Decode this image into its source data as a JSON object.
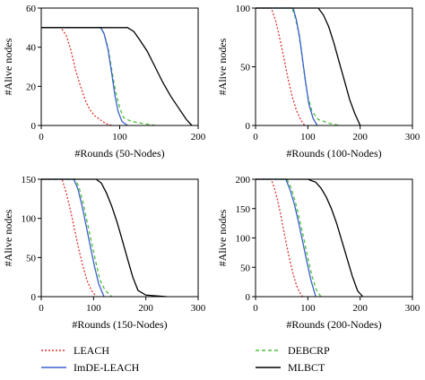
{
  "colors": {
    "LEACH": "#e0302a",
    "ImDE-LEACH": "#3a5fcd",
    "DEBCRP": "#4cbf3a",
    "MLBCT": "#000000"
  },
  "legend": [
    {
      "name": "LEACH",
      "dash": "dotted"
    },
    {
      "name": "DEBCRP",
      "dash": "dashed"
    },
    {
      "name": "ImDE-LEACH",
      "dash": "solid"
    },
    {
      "name": "MLBCT",
      "dash": "solid"
    }
  ],
  "chart_data": [
    {
      "type": "line",
      "xlabel": "#Rounds (50-Nodes)",
      "ylabel": "#Alive nodes",
      "xlim": [
        0,
        200
      ],
      "ylim": [
        0,
        60
      ],
      "xticks": [
        "0",
        "100",
        "200"
      ],
      "yticks": [
        "0",
        "20",
        "40",
        "60"
      ],
      "series": [
        {
          "name": "LEACH",
          "x": [
            0,
            25,
            32,
            38,
            44,
            50,
            56,
            62,
            68,
            75,
            82,
            90
          ],
          "y": [
            50,
            50,
            46,
            38,
            28,
            20,
            13,
            8,
            5,
            3,
            1,
            0
          ]
        },
        {
          "name": "DEBCRP",
          "x": [
            0,
            75,
            80,
            85,
            90,
            95,
            100,
            105,
            115,
            130,
            145
          ],
          "y": [
            50,
            50,
            47,
            40,
            28,
            17,
            9,
            4,
            2,
            1,
            0
          ]
        },
        {
          "name": "ImDE-LEACH",
          "x": [
            0,
            76,
            80,
            85,
            90,
            94,
            98,
            103,
            110
          ],
          "y": [
            50,
            50,
            47,
            39,
            26,
            15,
            7,
            2,
            0
          ]
        },
        {
          "name": "MLBCT",
          "x": [
            0,
            110,
            118,
            125,
            135,
            145,
            155,
            165,
            175,
            185,
            192
          ],
          "y": [
            50,
            50,
            48,
            44,
            38,
            30,
            22,
            15,
            9,
            3,
            0
          ]
        }
      ]
    },
    {
      "type": "line",
      "xlabel": "#Rounds (100-Nodes)",
      "ylabel": "#Alive nodes",
      "xlim": [
        0,
        300
      ],
      "ylim": [
        0,
        100
      ],
      "xticks": [
        "0",
        "100",
        "200",
        "300"
      ],
      "yticks": [
        "0",
        "50",
        "100"
      ],
      "series": [
        {
          "name": "LEACH",
          "x": [
            0,
            30,
            38,
            46,
            54,
            62,
            70,
            78,
            86,
            94
          ],
          "y": [
            100,
            100,
            90,
            75,
            58,
            40,
            25,
            13,
            5,
            0
          ]
        },
        {
          "name": "DEBCRP",
          "x": [
            0,
            70,
            76,
            82,
            88,
            94,
            100,
            108,
            120,
            140,
            160
          ],
          "y": [
            100,
            100,
            92,
            80,
            62,
            42,
            25,
            12,
            5,
            2,
            0
          ]
        },
        {
          "name": "ImDE-LEACH",
          "x": [
            0,
            72,
            78,
            84,
            90,
            96,
            102,
            110,
            118
          ],
          "y": [
            100,
            100,
            90,
            76,
            56,
            36,
            18,
            6,
            0
          ]
        },
        {
          "name": "MLBCT",
          "x": [
            0,
            120,
            130,
            140,
            150,
            160,
            170,
            180,
            190,
            200
          ],
          "y": [
            100,
            100,
            94,
            84,
            70,
            54,
            38,
            22,
            10,
            0
          ]
        }
      ]
    },
    {
      "type": "line",
      "xlabel": "#Rounds (150-Nodes)",
      "ylabel": "#Alive nodes",
      "xlim": [
        0,
        300
      ],
      "ylim": [
        0,
        150
      ],
      "xticks": [
        "0",
        "100",
        "200",
        "300"
      ],
      "yticks": [
        "0",
        "50",
        "100",
        "150"
      ],
      "series": [
        {
          "name": "LEACH",
          "x": [
            0,
            40,
            48,
            56,
            64,
            72,
            80,
            88,
            96,
            105
          ],
          "y": [
            150,
            150,
            132,
            110,
            85,
            60,
            38,
            20,
            8,
            0
          ]
        },
        {
          "name": "DEBCRP",
          "x": [
            0,
            65,
            72,
            80,
            88,
            96,
            104,
            112,
            122,
            135
          ],
          "y": [
            150,
            150,
            140,
            120,
            95,
            70,
            45,
            22,
            8,
            0
          ]
        },
        {
          "name": "ImDE-LEACH",
          "x": [
            0,
            62,
            70,
            78,
            86,
            94,
            102,
            110,
            120
          ],
          "y": [
            150,
            150,
            138,
            116,
            90,
            64,
            38,
            16,
            0
          ]
        },
        {
          "name": "MLBCT",
          "x": [
            0,
            105,
            115,
            125,
            135,
            145,
            155,
            165,
            175,
            185,
            200,
            240
          ],
          "y": [
            150,
            150,
            145,
            132,
            115,
            95,
            72,
            48,
            25,
            8,
            2,
            0
          ]
        }
      ]
    },
    {
      "type": "line",
      "xlabel": "#Rounds (200-Nodes)",
      "ylabel": "#Alive nodes",
      "xlim": [
        0,
        300
      ],
      "ylim": [
        0,
        200
      ],
      "xticks": [
        "0",
        "100",
        "200",
        "300"
      ],
      "yticks": [
        "0",
        "50",
        "100",
        "150",
        "200"
      ],
      "series": [
        {
          "name": "LEACH",
          "x": [
            0,
            30,
            36,
            42,
            48,
            54,
            60,
            66,
            72,
            78,
            84,
            90
          ],
          "y": [
            200,
            200,
            185,
            165,
            140,
            112,
            85,
            60,
            38,
            20,
            8,
            0
          ]
        },
        {
          "name": "DEBCRP",
          "x": [
            0,
            60,
            68,
            76,
            84,
            92,
            100,
            108,
            116,
            125
          ],
          "y": [
            200,
            200,
            185,
            162,
            132,
            100,
            66,
            35,
            12,
            0
          ]
        },
        {
          "name": "ImDE-LEACH",
          "x": [
            0,
            58,
            66,
            74,
            82,
            90,
            98,
            106,
            115
          ],
          "y": [
            200,
            200,
            182,
            158,
            128,
            94,
            60,
            28,
            0
          ]
        },
        {
          "name": "MLBCT",
          "x": [
            0,
            100,
            115,
            125,
            135,
            145,
            155,
            165,
            175,
            185,
            195,
            205
          ],
          "y": [
            200,
            200,
            195,
            185,
            170,
            150,
            125,
            95,
            65,
            35,
            10,
            0
          ]
        }
      ]
    }
  ]
}
